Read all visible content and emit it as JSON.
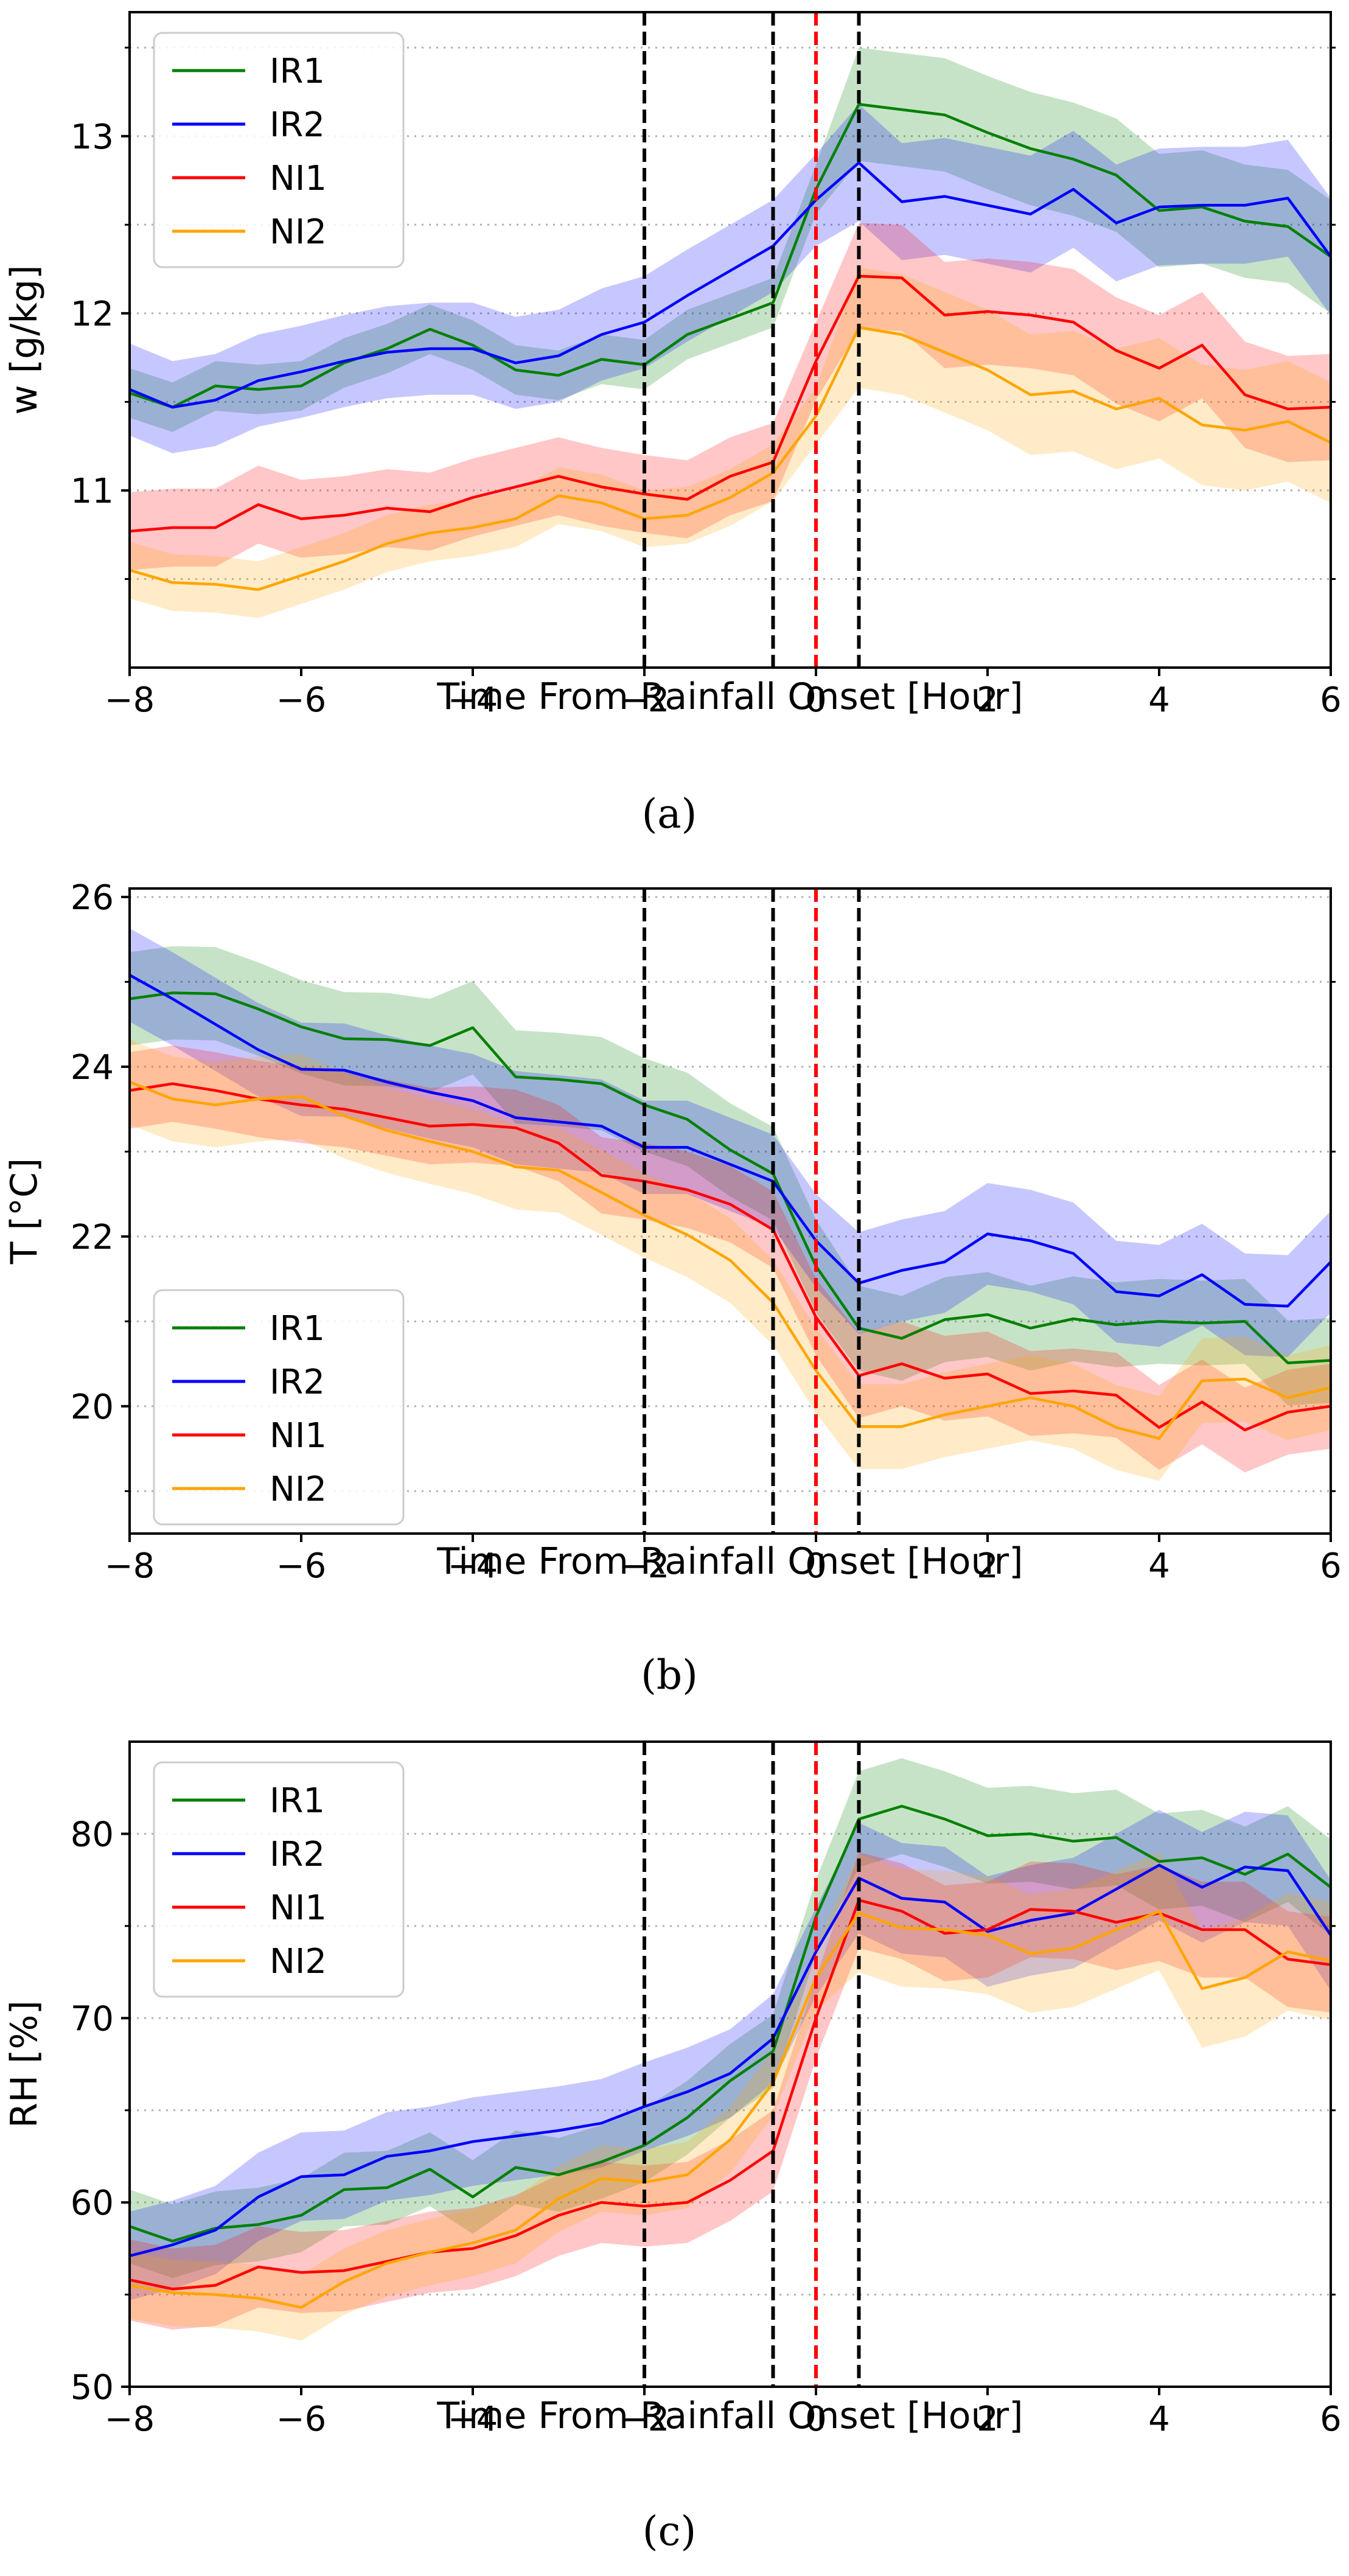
{
  "figure": {
    "colors": {
      "IR1": "#008000",
      "IR2": "#0000ff",
      "NI1": "#ff0000",
      "NI2": "#ffa500"
    },
    "vline_colors": {
      "black": "#000000",
      "red": "#ff0000"
    }
  },
  "chart_data": [
    {
      "type": "line",
      "panel_label": "(a)",
      "xlabel": "Time From Rainfall Onset [Hour]",
      "ylabel": "w [g/kg]",
      "xlim": [
        -8,
        6
      ],
      "ylim": [
        10.0,
        13.7
      ],
      "xticks": [
        -8,
        -6,
        -4,
        -2,
        0,
        2,
        4,
        6
      ],
      "xtick_labels": [
        "−8",
        "−6",
        "−4",
        "−2",
        "0",
        "2",
        "4",
        "6"
      ],
      "yticks": [
        11,
        12,
        13
      ],
      "ytick_labels": [
        "11",
        "12",
        "13"
      ],
      "minor_yticks": [
        10.5,
        11.5,
        12.5,
        13.5
      ],
      "vlines": [
        {
          "x": -2,
          "color": "black",
          "style": "dashed"
        },
        {
          "x": -0.5,
          "color": "black",
          "style": "dashed"
        },
        {
          "x": 0,
          "color": "red",
          "style": "dashed"
        },
        {
          "x": 0.5,
          "color": "black",
          "style": "dashed"
        }
      ],
      "legend": {
        "placement": "top-left",
        "entries": [
          "IR1",
          "IR2",
          "NI1",
          "NI2"
        ]
      },
      "x": [
        -8,
        -7.5,
        -7,
        -6.5,
        -6,
        -5.5,
        -5,
        -4.5,
        -4,
        -3.5,
        -3,
        -2.5,
        -2,
        -1.5,
        -1,
        -0.5,
        0,
        0.5,
        1,
        1.5,
        2,
        2.5,
        3,
        3.5,
        4,
        4.5,
        5,
        5.5,
        6
      ],
      "series": [
        {
          "name": "IR1",
          "values": [
            11.55,
            11.47,
            11.59,
            11.57,
            11.59,
            11.72,
            11.8,
            11.91,
            11.82,
            11.68,
            11.65,
            11.74,
            11.71,
            11.88,
            11.97,
            12.06,
            12.7,
            13.18,
            13.15,
            13.12,
            13.02,
            12.93,
            12.87,
            12.78,
            12.58,
            12.6,
            12.52,
            12.49,
            12.32
          ],
          "band": 0.14,
          "band_after_onset": 0.32
        },
        {
          "name": "IR2",
          "values": [
            11.57,
            11.47,
            11.51,
            11.62,
            11.67,
            11.73,
            11.78,
            11.8,
            11.8,
            11.72,
            11.76,
            11.88,
            11.95,
            12.1,
            12.24,
            12.38,
            12.64,
            12.85,
            12.63,
            12.66,
            12.61,
            12.56,
            12.7,
            12.51,
            12.6,
            12.61,
            12.61,
            12.65,
            12.32
          ],
          "band": 0.26,
          "band_after_onset": 0.33
        },
        {
          "name": "NI1",
          "values": [
            10.77,
            10.79,
            10.79,
            10.92,
            10.84,
            10.86,
            10.9,
            10.88,
            10.96,
            11.02,
            11.08,
            11.02,
            10.98,
            10.95,
            11.08,
            11.16,
            11.73,
            12.21,
            12.2,
            11.99,
            12.01,
            11.99,
            11.95,
            11.79,
            11.69,
            11.82,
            11.54,
            11.46,
            11.47
          ],
          "band": 0.22,
          "band_after_onset": 0.3
        },
        {
          "name": "NI2",
          "values": [
            10.55,
            10.48,
            10.47,
            10.44,
            10.52,
            10.6,
            10.7,
            10.76,
            10.79,
            10.84,
            10.97,
            10.93,
            10.84,
            10.86,
            10.96,
            11.1,
            11.42,
            11.92,
            11.88,
            11.78,
            11.68,
            11.54,
            11.56,
            11.46,
            11.52,
            11.37,
            11.34,
            11.39,
            11.27
          ],
          "band": 0.16,
          "band_after_onset": 0.34
        }
      ]
    },
    {
      "type": "line",
      "panel_label": "(b)",
      "xlabel": "Time From Rainfall Onset [Hour]",
      "ylabel": "T [°C]",
      "xlim": [
        -8,
        6
      ],
      "ylim": [
        18.5,
        26.1
      ],
      "xticks": [
        -8,
        -6,
        -4,
        -2,
        0,
        2,
        4,
        6
      ],
      "xtick_labels": [
        "−8",
        "−6",
        "−4",
        "−2",
        "0",
        "2",
        "4",
        "6"
      ],
      "yticks": [
        20,
        22,
        24,
        26
      ],
      "ytick_labels": [
        "20",
        "22",
        "24",
        "26"
      ],
      "minor_yticks": [
        19,
        21,
        23,
        25
      ],
      "vlines": [
        {
          "x": -2,
          "color": "black",
          "style": "dashed"
        },
        {
          "x": -0.5,
          "color": "black",
          "style": "dashed"
        },
        {
          "x": 0,
          "color": "red",
          "style": "dashed"
        },
        {
          "x": 0.5,
          "color": "black",
          "style": "dashed"
        }
      ],
      "legend": {
        "placement": "bottom-left",
        "entries": [
          "IR1",
          "IR2",
          "NI1",
          "NI2"
        ]
      },
      "x": [
        -8,
        -7.5,
        -7,
        -6.5,
        -6,
        -5.5,
        -5,
        -4.5,
        -4,
        -3.5,
        -3,
        -2.5,
        -2,
        -1.5,
        -1,
        -0.5,
        0,
        0.5,
        1,
        1.5,
        2,
        2.5,
        3,
        3.5,
        4,
        4.5,
        5,
        5.5,
        6
      ],
      "series": [
        {
          "name": "IR1",
          "values": [
            24.8,
            24.87,
            24.86,
            24.68,
            24.47,
            24.33,
            24.32,
            24.25,
            24.46,
            23.88,
            23.85,
            23.8,
            23.55,
            23.38,
            23.02,
            22.74,
            21.65,
            20.92,
            20.8,
            21.02,
            21.08,
            20.92,
            21.03,
            20.96,
            21.0,
            20.98,
            21.0,
            20.51,
            20.54
          ],
          "band": 0.55,
          "band_after_onset": 0.5
        },
        {
          "name": "IR2",
          "values": [
            25.08,
            24.8,
            24.5,
            24.2,
            23.97,
            23.96,
            23.82,
            23.7,
            23.6,
            23.4,
            23.35,
            23.3,
            23.05,
            23.05,
            22.85,
            22.65,
            21.95,
            21.45,
            21.6,
            21.7,
            22.03,
            21.95,
            21.8,
            21.35,
            21.3,
            21.55,
            21.2,
            21.18,
            21.7
          ],
          "band": 0.55,
          "band_after_onset": 0.6
        },
        {
          "name": "NI1",
          "values": [
            23.72,
            23.8,
            23.72,
            23.62,
            23.55,
            23.5,
            23.4,
            23.3,
            23.32,
            23.28,
            23.1,
            22.72,
            22.65,
            22.55,
            22.38,
            22.08,
            21.05,
            20.36,
            20.5,
            20.33,
            20.38,
            20.15,
            20.18,
            20.13,
            19.75,
            20.05,
            19.72,
            19.93,
            20.0
          ],
          "band": 0.45,
          "band_after_onset": 0.5
        },
        {
          "name": "NI2",
          "values": [
            23.82,
            23.62,
            23.55,
            23.62,
            23.65,
            23.42,
            23.25,
            23.12,
            23.0,
            22.82,
            22.78,
            22.52,
            22.25,
            22.02,
            21.72,
            21.22,
            20.42,
            19.76,
            19.76,
            19.9,
            20.0,
            20.1,
            20.0,
            19.75,
            19.62,
            20.3,
            20.32,
            20.1,
            20.22
          ],
          "band": 0.5,
          "band_after_onset": 0.5
        }
      ]
    },
    {
      "type": "line",
      "panel_label": "(c)",
      "xlabel": "Time From Rainfall Onset [Hour]",
      "ylabel": "RH [%]",
      "xlim": [
        -8,
        6
      ],
      "ylim": [
        50,
        85
      ],
      "xticks": [
        -8,
        -6,
        -4,
        -2,
        0,
        2,
        4,
        6
      ],
      "xtick_labels": [
        "−8",
        "−6",
        "−4",
        "−2",
        "0",
        "2",
        "4",
        "6"
      ],
      "yticks": [
        50,
        60,
        70,
        80
      ],
      "ytick_labels": [
        "50",
        "60",
        "70",
        "80"
      ],
      "minor_yticks": [
        55,
        65,
        75
      ],
      "vlines": [
        {
          "x": -2,
          "color": "black",
          "style": "dashed"
        },
        {
          "x": -0.5,
          "color": "black",
          "style": "dashed"
        },
        {
          "x": 0,
          "color": "red",
          "style": "dashed"
        },
        {
          "x": 0.5,
          "color": "black",
          "style": "dashed"
        }
      ],
      "legend": {
        "placement": "top-left",
        "entries": [
          "IR1",
          "IR2",
          "NI1",
          "NI2"
        ]
      },
      "x": [
        -8,
        -7.5,
        -7,
        -6.5,
        -6,
        -5.5,
        -5,
        -4.5,
        -4,
        -3.5,
        -3,
        -2.5,
        -2,
        -1.5,
        -1,
        -0.5,
        0,
        0.5,
        1,
        1.5,
        2,
        2.5,
        3,
        3.5,
        4,
        4.5,
        5,
        5.5,
        6
      ],
      "series": [
        {
          "name": "IR1",
          "values": [
            58.7,
            57.9,
            58.6,
            58.8,
            59.3,
            60.7,
            60.8,
            61.8,
            60.3,
            61.9,
            61.5,
            62.2,
            63.1,
            64.6,
            66.6,
            68.2,
            75.5,
            80.8,
            81.5,
            80.8,
            79.9,
            80.0,
            79.6,
            79.8,
            78.5,
            78.7,
            77.8,
            78.9,
            77.1
          ],
          "band": 2.0,
          "band_after_onset": 2.6
        },
        {
          "name": "IR2",
          "values": [
            57.1,
            57.7,
            58.5,
            60.3,
            61.4,
            61.5,
            62.5,
            62.8,
            63.3,
            63.6,
            63.9,
            64.3,
            65.2,
            66.0,
            67.0,
            68.9,
            73.6,
            77.6,
            76.5,
            76.3,
            74.7,
            75.3,
            75.7,
            77.0,
            78.3,
            77.1,
            78.2,
            78.0,
            74.5
          ],
          "band": 2.4,
          "band_after_onset": 3.0
        },
        {
          "name": "NI1",
          "values": [
            55.8,
            55.3,
            55.5,
            56.5,
            56.2,
            56.3,
            56.8,
            57.3,
            57.5,
            58.2,
            59.3,
            60.0,
            59.8,
            60.0,
            61.2,
            62.8,
            70.0,
            76.4,
            75.8,
            74.6,
            74.8,
            75.9,
            75.8,
            75.2,
            75.7,
            74.8,
            74.8,
            73.2,
            72.9
          ],
          "band": 2.2,
          "band_after_onset": 2.6
        },
        {
          "name": "NI2",
          "values": [
            55.5,
            55.1,
            55.0,
            54.8,
            54.3,
            55.7,
            56.7,
            57.3,
            57.8,
            58.5,
            60.2,
            61.3,
            61.1,
            61.5,
            63.4,
            66.5,
            72.2,
            75.7,
            74.9,
            74.8,
            74.5,
            73.5,
            73.8,
            74.8,
            75.8,
            71.6,
            72.2,
            73.6,
            73.1
          ],
          "band": 1.8,
          "band_after_onset": 3.2
        }
      ]
    }
  ]
}
